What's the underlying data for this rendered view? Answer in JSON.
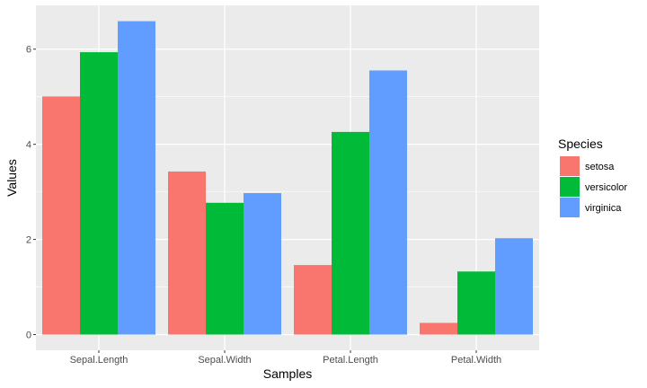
{
  "chart_data": {
    "type": "bar",
    "categories": [
      "Sepal.Length",
      "Sepal.Width",
      "Petal.Length",
      "Petal.Width"
    ],
    "series": [
      {
        "name": "setosa",
        "color": "#F8766D",
        "values": [
          5.006,
          3.428,
          1.462,
          0.246
        ]
      },
      {
        "name": "versicolor",
        "color": "#00BA38",
        "values": [
          5.936,
          2.77,
          4.26,
          1.326
        ]
      },
      {
        "name": "virginica",
        "color": "#619CFF",
        "values": [
          6.588,
          2.974,
          5.552,
          2.026
        ]
      }
    ],
    "title": "",
    "xlabel": "Samples",
    "ylabel": "Values",
    "ylim": [
      -0.33,
      6.92
    ],
    "yticks": [
      0,
      2,
      4,
      6
    ],
    "ytick_labels": [
      "0",
      "2",
      "4",
      "6"
    ],
    "legend_title": "Species",
    "legend_position": "right",
    "grid": true,
    "panel_background": "#EBEBEB",
    "grid_color": "#FFFFFF"
  }
}
